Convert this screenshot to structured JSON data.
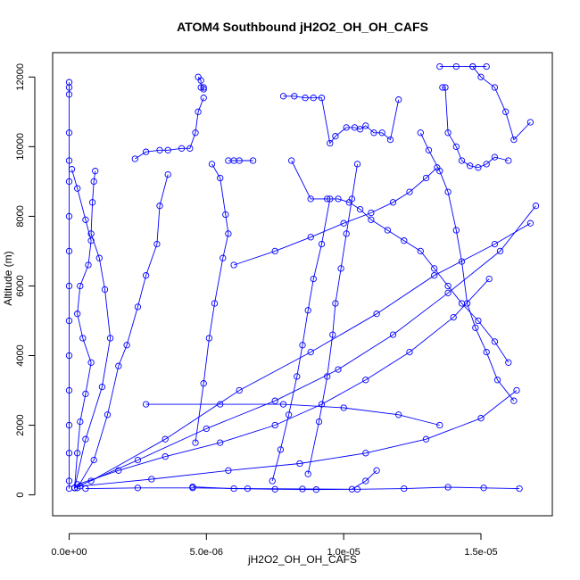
{
  "chart_data": {
    "type": "scatter",
    "title": "ATOM4 Southbound jH2O2_OH_OH_CAFS",
    "xlabel": "jH2O2_OH_OH_CAFS",
    "ylabel": "Altitude (m)",
    "xlim": [
      -6e-07,
      1.76e-05
    ],
    "ylim": [
      -600,
      12700
    ],
    "x_ticks": [
      {
        "value": 0,
        "label": "0.0e+00"
      },
      {
        "value": 5e-06,
        "label": "5.0e-06"
      },
      {
        "value": 1e-05,
        "label": "1.0e-05"
      },
      {
        "value": 1.5e-05,
        "label": "1.5e-05"
      }
    ],
    "y_ticks": [
      {
        "value": 0,
        "label": "0"
      },
      {
        "value": 2000,
        "label": "2000"
      },
      {
        "value": 4000,
        "label": "4000"
      },
      {
        "value": 6000,
        "label": "6000"
      },
      {
        "value": 8000,
        "label": "8000"
      },
      {
        "value": 10000,
        "label": "10000"
      },
      {
        "value": 12000,
        "label": "12000"
      }
    ],
    "grid": false,
    "legend": "none",
    "style": {
      "color": "#0000ff",
      "marker": "open-circle",
      "connected": true
    },
    "series": [
      {
        "x": [
          0,
          0,
          0,
          0,
          0,
          0,
          0,
          0,
          0,
          0,
          0,
          0,
          0,
          0,
          0,
          0
        ],
        "y": [
          11850,
          11700,
          11500,
          10400,
          9600,
          9000,
          8000,
          7000,
          6000,
          5000,
          4000,
          3000,
          2000,
          1200,
          400,
          180
        ]
      },
      {
        "x": [
          1e-07,
          3e-07,
          6e-07,
          8e-07,
          7e-07,
          4e-07,
          3e-07,
          5e-07,
          8e-07,
          6e-07,
          4e-07,
          3e-07,
          2e-07
        ],
        "y": [
          9350,
          8800,
          7900,
          7300,
          6600,
          6000,
          5200,
          4500,
          3800,
          2900,
          2100,
          1200,
          200
        ]
      },
      {
        "x": [
          9.5e-07,
          9e-07,
          8.5e-07,
          8e-07,
          1.1e-06,
          1.3e-06,
          1.5e-06,
          1.2e-06,
          6e-07,
          2e-07
        ],
        "y": [
          9300,
          9000,
          8400,
          7500,
          6800,
          5900,
          4500,
          3100,
          1600,
          200
        ]
      },
      {
        "x": [
          2.4e-06,
          2.8e-06,
          3.3e-06,
          3.6e-06,
          4.1e-06,
          4.4e-06,
          4.6e-06,
          4.7e-06,
          4.9e-06
        ],
        "y": [
          9650,
          9850,
          9900,
          9900,
          9950,
          9950,
          10400,
          11000,
          11400
        ]
      },
      {
        "x": [
          4.7e-06,
          4.8e-06,
          4.8e-06,
          4.9e-06,
          4.9e-06
        ],
        "y": [
          12000,
          11900,
          11700,
          11650,
          11700
        ]
      },
      {
        "x": [
          3.6e-06,
          3.3e-06,
          3.2e-06,
          2.8e-06,
          2.5e-06,
          2.1e-06,
          1.8e-06,
          1.4e-06,
          9e-07,
          3e-07
        ],
        "y": [
          9200,
          8300,
          7200,
          6300,
          5400,
          4300,
          3700,
          2300,
          1000,
          200
        ]
      },
      {
        "x": [
          5.2e-06,
          5.5e-06,
          5.7e-06,
          5.8e-06,
          5.6e-06,
          5.3e-06,
          5.1e-06,
          4.9e-06,
          4.6e-06
        ],
        "y": [
          9500,
          9100,
          8050,
          7500,
          6800,
          5500,
          4500,
          3200,
          1500
        ]
      },
      {
        "x": [
          5.8e-06,
          6e-06,
          6.2e-06,
          6.7e-06
        ],
        "y": [
          9600,
          9600,
          9600,
          9600
        ]
      },
      {
        "x": [
          7.8e-06,
          8.2e-06,
          8.6e-06,
          8.9e-06,
          9.2e-06,
          9.5e-06,
          9.7e-06,
          1.01e-05,
          1.04e-05,
          1.06e-05,
          1.08e-05,
          1.11e-05,
          1.14e-05,
          1.17e-05,
          1.2e-05
        ],
        "y": [
          11450,
          11450,
          11400,
          11400,
          11400,
          10100,
          10300,
          10550,
          10550,
          10500,
          10600,
          10400,
          10400,
          10200,
          11350
        ]
      },
      {
        "x": [
          1.35e-05,
          1.41e-05,
          1.47e-05,
          1.52e-05
        ],
        "y": [
          12300,
          12300,
          12300,
          12300
        ]
      },
      {
        "x": [
          1.47e-05,
          1.5e-05,
          1.55e-05,
          1.59e-05,
          1.62e-05,
          1.68e-05
        ],
        "y": [
          12300,
          12000,
          11700,
          11000,
          10200,
          10700
        ]
      },
      {
        "x": [
          1.36e-05,
          1.37e-05,
          1.38e-05,
          1.41e-05,
          1.43e-05,
          1.46e-05,
          1.49e-05,
          1.52e-05,
          1.55e-05,
          1.6e-05
        ],
        "y": [
          11700,
          11700,
          10400,
          10000,
          9600,
          9450,
          9400,
          9500,
          9700,
          9600
        ]
      },
      {
        "x": [
          8.1e-06,
          8.8e-06,
          9.4e-06,
          9.8e-06,
          1.02e-05,
          1.06e-05,
          1.1e-05,
          1.16e-05,
          1.22e-05,
          1.28e-05,
          1.33e-05,
          1.38e-05,
          1.43e-05,
          1.49e-05,
          1.55e-05,
          1.6e-05
        ],
        "y": [
          9600,
          8500,
          8500,
          8500,
          8400,
          8200,
          7900,
          7600,
          7300,
          7000,
          6500,
          6000,
          5500,
          5000,
          4400,
          3800
        ]
      },
      {
        "x": [
          9.5e-06,
          9.2e-06,
          8.9e-06,
          8.7e-06,
          8.5e-06,
          8.3e-06,
          8e-06,
          7.7e-06,
          7.4e-06
        ],
        "y": [
          8500,
          7200,
          6200,
          5300,
          4300,
          3400,
          2300,
          1300,
          400
        ]
      },
      {
        "x": [
          1.05e-05,
          1.03e-05,
          1.01e-05,
          9.9e-06,
          9.7e-06,
          9.6e-06,
          9.4e-06,
          9.1e-06,
          8.7e-06
        ],
        "y": [
          9500,
          8500,
          7500,
          6500,
          5500,
          4600,
          3400,
          2100,
          600
        ]
      },
      {
        "x": [
          1.28e-05,
          1.31e-05,
          1.35e-05,
          1.38e-05,
          1.41e-05,
          1.43e-05,
          1.45e-05,
          1.48e-05,
          1.52e-05,
          1.56e-05,
          1.62e-05
        ],
        "y": [
          10400,
          9900,
          9300,
          8700,
          7600,
          6700,
          5500,
          4800,
          4100,
          3300,
          2700
        ]
      },
      {
        "x": [
          6e-07,
          2.5e-06,
          4.5e-06,
          6.5e-06,
          8.5e-06,
          1.05e-05,
          1.22e-05,
          1.38e-05,
          1.51e-05,
          1.64e-05
        ],
        "y": [
          180,
          200,
          200,
          180,
          170,
          160,
          180,
          220,
          200,
          180
        ]
      },
      {
        "x": [
          4.5e-06,
          6e-06,
          7.5e-06,
          9e-06,
          1.03e-05,
          1.08e-05,
          1.12e-05
        ],
        "y": [
          230,
          180,
          160,
          150,
          160,
          400,
          700
        ]
      },
      {
        "x": [
          3e-07,
          1.8e-06,
          3.5e-06,
          5.5e-06,
          7.5e-06,
          9.2e-06,
          1.08e-05,
          1.24e-05,
          1.4e-05,
          1.53e-05
        ],
        "y": [
          300,
          700,
          1100,
          1500,
          2000,
          2600,
          3300,
          4100,
          5100,
          6200
        ]
      },
      {
        "x": [
          2e-07,
          2.5e-06,
          5e-06,
          7.5e-06,
          9.8e-06,
          1.18e-05,
          1.38e-05,
          1.57e-05,
          1.7e-05
        ],
        "y": [
          200,
          1000,
          1900,
          2700,
          3600,
          4600,
          5800,
          7000,
          8300
        ]
      },
      {
        "x": [
          4e-07,
          3e-06,
          5.8e-06,
          8.4e-06,
          1.08e-05,
          1.3e-05,
          1.5e-05,
          1.63e-05
        ],
        "y": [
          250,
          450,
          700,
          900,
          1200,
          1600,
          2200,
          3000
        ]
      },
      {
        "x": [
          8e-07,
          3.5e-06,
          6.2e-06,
          8.8e-06,
          1.12e-05,
          1.33e-05,
          1.55e-05,
          1.68e-05
        ],
        "y": [
          400,
          1600,
          3000,
          4100,
          5200,
          6300,
          7200,
          7800
        ]
      },
      {
        "x": [
          6e-06,
          7.5e-06,
          8.8e-06,
          1e-05,
          1.1e-05,
          1.18e-05,
          1.24e-05,
          1.3e-05,
          1.34e-05
        ],
        "y": [
          6600,
          7000,
          7400,
          7800,
          8100,
          8400,
          8700,
          9100,
          9400
        ]
      },
      {
        "x": [
          2.8e-06,
          5.5e-06,
          7.8e-06,
          1e-05,
          1.2e-05,
          1.35e-05
        ],
        "y": [
          2600,
          2600,
          2600,
          2500,
          2300,
          2000
        ]
      }
    ]
  }
}
